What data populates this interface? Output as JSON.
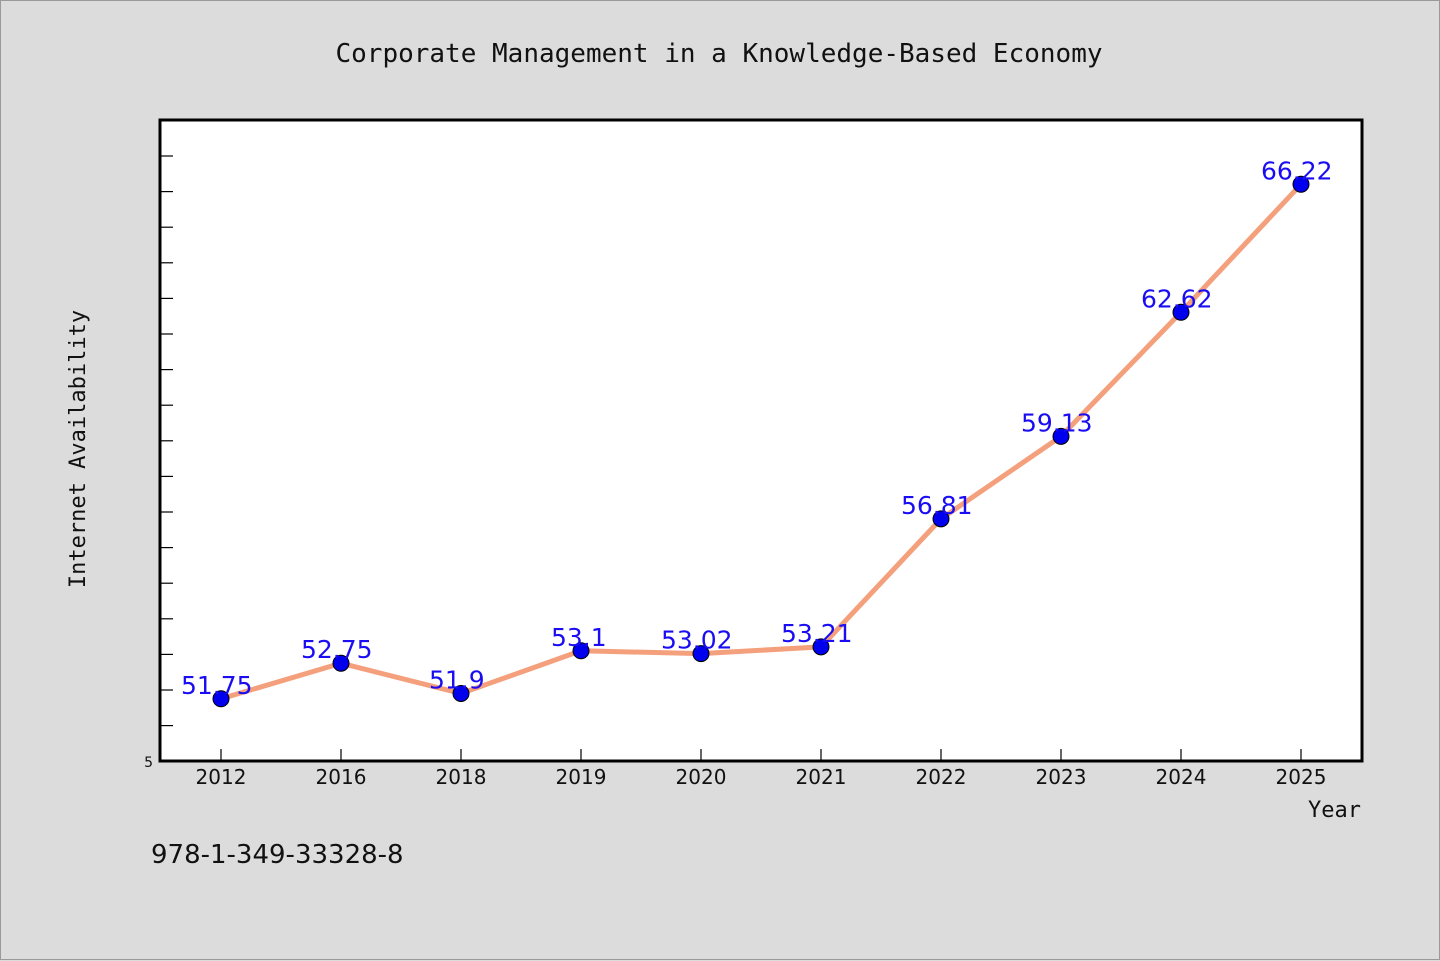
{
  "chart_data": {
    "type": "line",
    "title": "Corporate Management in a Knowledge-Based Economy",
    "xlabel": "Year",
    "ylabel": "Internet Availability",
    "categories": [
      "2012",
      "2016",
      "2018",
      "2019",
      "2020",
      "2021",
      "2022",
      "2023",
      "2024",
      "2025"
    ],
    "series": [
      {
        "values": [
          51.75,
          52.75,
          51.9,
          53.1,
          53.02,
          53.21,
          56.81,
          59.13,
          62.62,
          66.22
        ],
        "labels": [
          "51.75",
          "52.75",
          "51.9",
          "53.1",
          "53.02",
          "53.21",
          "56.81",
          "59.13",
          "62.62",
          "66.22"
        ]
      }
    ],
    "ylim": [
      50,
      68
    ],
    "yticks_labeled": [
      "5"
    ],
    "line_color": "#f4a07c",
    "marker_color": "#0000ee",
    "label_color": "#1a0df2",
    "grid": false
  },
  "footnote": "978-1-349-33328-8"
}
